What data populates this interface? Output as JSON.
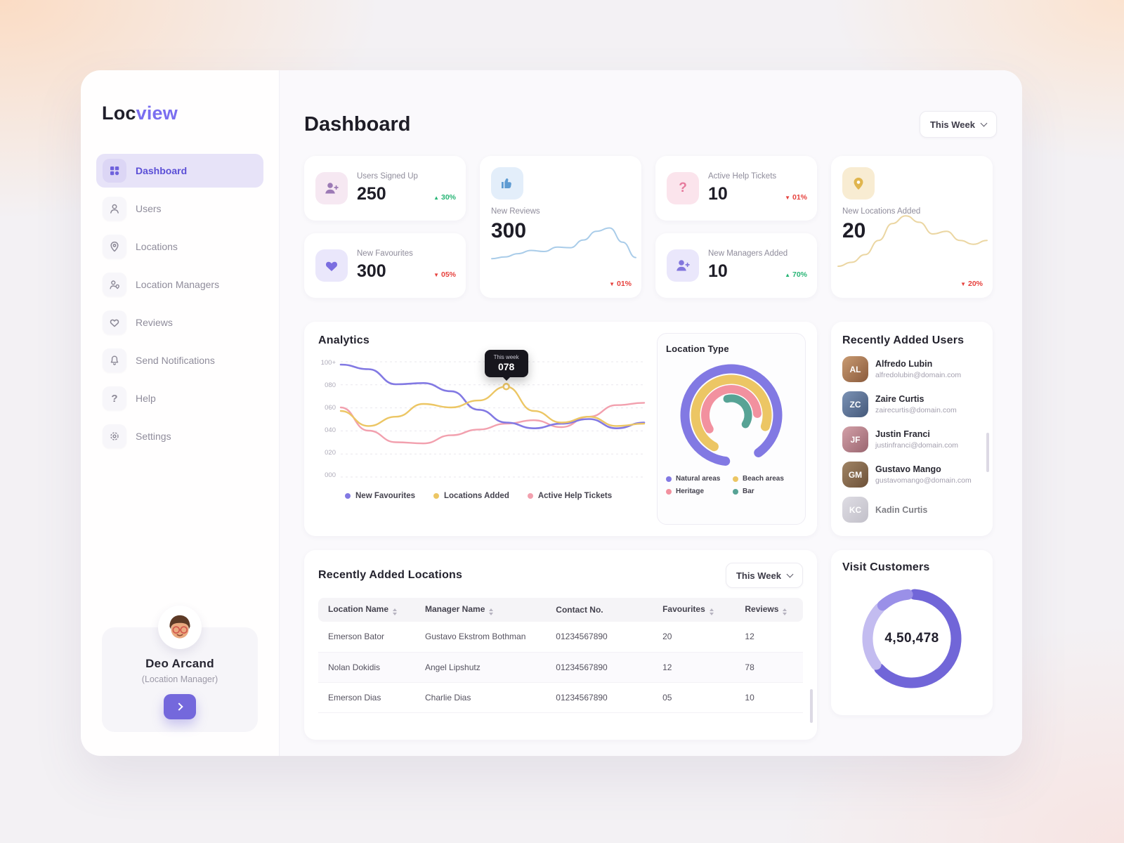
{
  "brand": {
    "prefix": "Loc",
    "suffix": "view"
  },
  "header": {
    "title": "Dashboard",
    "period": "This Week"
  },
  "sidebar": {
    "items": [
      {
        "label": "Dashboard"
      },
      {
        "label": "Users"
      },
      {
        "label": "Locations"
      },
      {
        "label": "Location Managers"
      },
      {
        "label": "Reviews"
      },
      {
        "label": "Send Notifications"
      },
      {
        "label": "Help"
      },
      {
        "label": "Settings"
      }
    ],
    "profile": {
      "name": "Deo Arcand",
      "role": "(Location Manager)"
    }
  },
  "stats": {
    "users_signed_up": {
      "label": "Users Signed Up",
      "value": "250",
      "delta": "30%",
      "trend": "up"
    },
    "new_favourites": {
      "label": "New Favourites",
      "value": "300",
      "delta": "05%",
      "trend": "down"
    },
    "new_reviews": {
      "label": "New Reviews",
      "value": "300",
      "delta": "01%",
      "trend": "down"
    },
    "active_help_tickets": {
      "label": "Active Help Tickets",
      "value": "10",
      "delta": "01%",
      "trend": "down"
    },
    "new_managers_added": {
      "label": "New Managers Added",
      "value": "10",
      "delta": "70%",
      "trend": "up"
    },
    "new_locations_added": {
      "label": "New Locations Added",
      "value": "20",
      "delta": "20%",
      "trend": "down"
    }
  },
  "recent_users": {
    "title": "Recently Added Users",
    "users": [
      {
        "name": "Alfredo Lubin",
        "email": "alfredolubin@domain.com"
      },
      {
        "name": "Zaire Curtis",
        "email": "zairecurtis@domain.com"
      },
      {
        "name": "Justin Franci",
        "email": "justinfranci@domain.com"
      },
      {
        "name": "Gustavo Mango",
        "email": "gustavomango@domain.com"
      },
      {
        "name": "Kadin Curtis",
        "email": ""
      }
    ]
  },
  "recent_locations": {
    "title": "Recently Added Locations",
    "period": "This Week",
    "columns": [
      "Location Name",
      "Manager Name",
      "Contact No.",
      "Favourites",
      "Reviews"
    ],
    "rows": [
      [
        "Emerson Bator",
        "Gustavo Ekstrom Bothman",
        "01234567890",
        "20",
        "12"
      ],
      [
        "Nolan Dokidis",
        "Angel Lipshutz",
        "01234567890",
        "12",
        "78"
      ],
      [
        "Emerson Dias",
        "Charlie Dias",
        "01234567890",
        "05",
        "10"
      ]
    ]
  },
  "chart_data": [
    {
      "id": "analytics",
      "type": "line",
      "title": "Analytics",
      "ylim": [
        0,
        100
      ],
      "y_ticks": [
        "100+",
        "080",
        "060",
        "040",
        "020",
        "000"
      ],
      "series": [
        {
          "name": "New Favourites",
          "color": "#8279e3",
          "values": [
            97,
            93,
            80,
            81,
            74,
            58,
            47,
            42,
            46,
            50,
            42,
            47
          ]
        },
        {
          "name": "Locations Added",
          "color": "#ecc664",
          "values": [
            57,
            44,
            52,
            63,
            60,
            66,
            78,
            57,
            47,
            52,
            44,
            46
          ]
        },
        {
          "name": "Active Help Tickets",
          "color": "#f2a0ae",
          "values": [
            60,
            40,
            30,
            29,
            36,
            41,
            46,
            49,
            43,
            52,
            62,
            64
          ]
        }
      ],
      "tooltip": {
        "label": "This week",
        "value": "078",
        "series": 1,
        "index": 6
      },
      "grid": "dashed-horizontal",
      "legend_position": "bottom"
    },
    {
      "id": "reviews_spark",
      "type": "line",
      "ylim": [
        0,
        100
      ],
      "series": [
        {
          "name": "New Reviews",
          "color": "#a9cce9",
          "values": [
            28,
            31,
            37,
            43,
            41,
            49,
            48,
            62,
            78,
            84,
            58,
            30
          ]
        }
      ]
    },
    {
      "id": "locations_spark",
      "type": "line",
      "ylim": [
        0,
        100
      ],
      "series": [
        {
          "name": "New Locations Added",
          "color": "#ebd6a2",
          "values": [
            12,
            18,
            30,
            52,
            78,
            90,
            80,
            62,
            66,
            52,
            46,
            52
          ]
        }
      ]
    },
    {
      "id": "location_type",
      "type": "donut",
      "title": "Location Type",
      "rings": [
        {
          "label": "Natural areas",
          "color": "#8279e3",
          "percent": 88,
          "start": 52
        },
        {
          "label": "Beach areas",
          "color": "#ecc664",
          "percent": 72,
          "start": 58
        },
        {
          "label": "Heritage",
          "color": "#f2919f",
          "percent": 58,
          "start": 66
        },
        {
          "label": "Bar",
          "color": "#57a395",
          "percent": 38,
          "start": 96
        }
      ]
    },
    {
      "id": "visit_customers",
      "type": "donut",
      "title": "Visit Customers",
      "center_label": "4,50,478",
      "segments": [
        {
          "color": "#7166d8",
          "percent": 62,
          "start": 1
        },
        {
          "color": "#c3bcf0",
          "percent": 22,
          "start": 65
        },
        {
          "color": "#9a90e8",
          "percent": 10,
          "start": 88.5
        }
      ]
    }
  ]
}
